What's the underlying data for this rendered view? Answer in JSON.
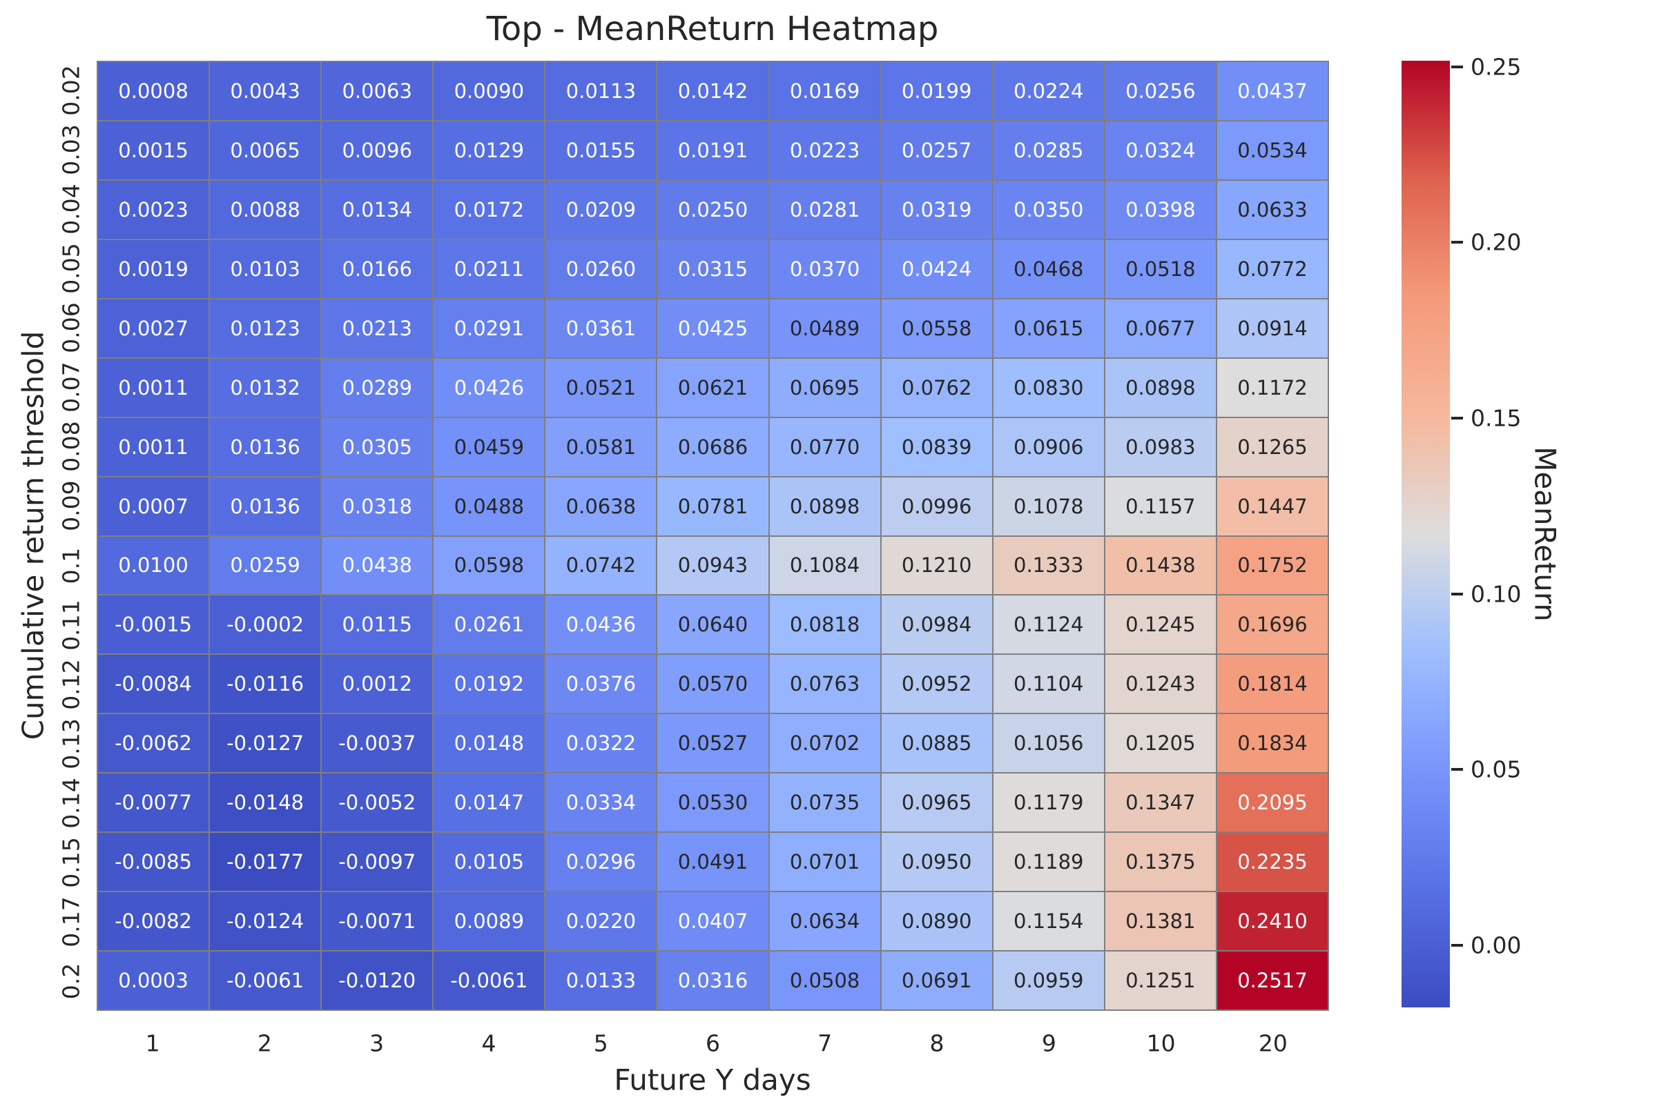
{
  "chart_data": {
    "type": "heatmap",
    "title": "Top - MeanReturn Heatmap",
    "xlabel": "Future Y days",
    "ylabel": "Cumulative return threshold",
    "x_categories": [
      "1",
      "2",
      "3",
      "4",
      "5",
      "6",
      "7",
      "8",
      "9",
      "10",
      "20"
    ],
    "y_categories": [
      "0.02",
      "0.03",
      "0.04",
      "0.05",
      "0.06",
      "0.07",
      "0.08",
      "0.09",
      "0.1",
      "0.11",
      "0.12",
      "0.13",
      "0.14",
      "0.15",
      "0.17",
      "0.2"
    ],
    "values": [
      [
        0.0008,
        0.0043,
        0.0063,
        0.009,
        0.0113,
        0.0142,
        0.0169,
        0.0199,
        0.0224,
        0.0256,
        0.0437
      ],
      [
        0.0015,
        0.0065,
        0.0096,
        0.0129,
        0.0155,
        0.0191,
        0.0223,
        0.0257,
        0.0285,
        0.0324,
        0.0534
      ],
      [
        0.0023,
        0.0088,
        0.0134,
        0.0172,
        0.0209,
        0.025,
        0.0281,
        0.0319,
        0.035,
        0.0398,
        0.0633
      ],
      [
        0.0019,
        0.0103,
        0.0166,
        0.0211,
        0.026,
        0.0315,
        0.037,
        0.0424,
        0.0468,
        0.0518,
        0.0772
      ],
      [
        0.0027,
        0.0123,
        0.0213,
        0.0291,
        0.0361,
        0.0425,
        0.0489,
        0.0558,
        0.0615,
        0.0677,
        0.0914
      ],
      [
        0.0011,
        0.0132,
        0.0289,
        0.0426,
        0.0521,
        0.0621,
        0.0695,
        0.0762,
        0.083,
        0.0898,
        0.1172
      ],
      [
        0.0011,
        0.0136,
        0.0305,
        0.0459,
        0.0581,
        0.0686,
        0.077,
        0.0839,
        0.0906,
        0.0983,
        0.1265
      ],
      [
        0.0007,
        0.0136,
        0.0318,
        0.0488,
        0.0638,
        0.0781,
        0.0898,
        0.0996,
        0.1078,
        0.1157,
        0.1447
      ],
      [
        0.01,
        0.0259,
        0.0438,
        0.0598,
        0.0742,
        0.0943,
        0.1084,
        0.121,
        0.1333,
        0.1438,
        0.1752
      ],
      [
        -0.0015,
        -0.0002,
        0.0115,
        0.0261,
        0.0436,
        0.064,
        0.0818,
        0.0984,
        0.1124,
        0.1245,
        0.1696
      ],
      [
        -0.0084,
        -0.0116,
        0.0012,
        0.0192,
        0.0376,
        0.057,
        0.0763,
        0.0952,
        0.1104,
        0.1243,
        0.1814
      ],
      [
        -0.0062,
        -0.0127,
        -0.0037,
        0.0148,
        0.0322,
        0.0527,
        0.0702,
        0.0885,
        0.1056,
        0.1205,
        0.1834
      ],
      [
        -0.0077,
        -0.0148,
        -0.0052,
        0.0147,
        0.0334,
        0.053,
        0.0735,
        0.0965,
        0.1179,
        0.1347,
        0.2095
      ],
      [
        -0.0085,
        -0.0177,
        -0.0097,
        0.0105,
        0.0296,
        0.0491,
        0.0701,
        0.095,
        0.1189,
        0.1375,
        0.2235
      ],
      [
        -0.0082,
        -0.0124,
        -0.0071,
        0.0089,
        0.022,
        0.0407,
        0.0634,
        0.089,
        0.1154,
        0.1381,
        0.241
      ],
      [
        0.0003,
        -0.0061,
        -0.012,
        -0.0061,
        0.0133,
        0.0316,
        0.0508,
        0.0691,
        0.0959,
        0.1251,
        0.2517
      ]
    ],
    "annotation_decimals": 4,
    "vmin": -0.0177,
    "vmax": 0.2517,
    "colormap": "coolwarm",
    "colormap_stops": [
      "#3B4CC0",
      "#5871E5",
      "#7895FB",
      "#9EBEFF",
      "#DDDDDD",
      "#F6B79B",
      "#F49A7B",
      "#DE624D",
      "#B40426"
    ],
    "grid_line_color": "#7f7f7f",
    "annotation_color_dark": "#262626",
    "annotation_color_light": "#ffffff",
    "white_text_below_t": 0.233,
    "white_text_above_t": 0.8,
    "legend_position": "right",
    "colorbar": {
      "label": "MeanReturn",
      "tick_values": [
        0.0,
        0.05,
        0.1,
        0.15,
        0.2,
        0.25
      ],
      "tick_labels": [
        "0.00",
        "0.05",
        "0.10",
        "0.15",
        "0.20",
        "0.25"
      ]
    }
  }
}
